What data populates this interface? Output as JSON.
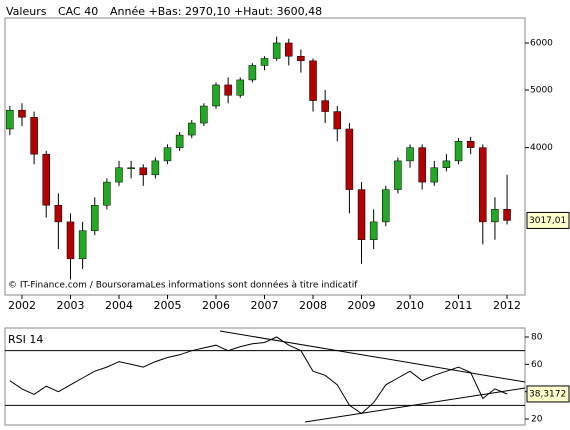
{
  "chart_data": [
    {
      "type": "candlestick",
      "header_labels": [
        "Valeurs",
        "CAC 40",
        "Année +Bas: 2970,10 +Haut: 3600,48"
      ],
      "footnote": "© IT-Finance.com / BoursoramaLes informations sont données à titre indicatif",
      "x": [
        2001.75,
        2002,
        2002.25,
        2002.5,
        2002.75,
        2003,
        2003.25,
        2003.5,
        2003.75,
        2004,
        2004.25,
        2004.5,
        2004.75,
        2005,
        2005.25,
        2005.5,
        2005.75,
        2006,
        2006.25,
        2006.5,
        2006.75,
        2007,
        2007.25,
        2007.5,
        2007.75,
        2008,
        2008.25,
        2008.5,
        2008.75,
        2009,
        2009.25,
        2009.5,
        2009.75,
        2010,
        2010.25,
        2010.5,
        2010.75,
        2011,
        2011.25,
        2011.5,
        2011.75,
        2012
      ],
      "open": [
        4300,
        4625,
        4500,
        3900,
        3200,
        3000,
        2600,
        2900,
        3200,
        3500,
        3700,
        3700,
        3600,
        3800,
        4000,
        4200,
        4400,
        4700,
        5100,
        4900,
        5200,
        5500,
        5650,
        6000,
        5700,
        5600,
        4800,
        4600,
        4300,
        3400,
        2800,
        3000,
        3400,
        3800,
        4000,
        3500,
        3700,
        3800,
        4100,
        4000,
        3000,
        3150
      ],
      "high": [
        4700,
        4750,
        4600,
        3950,
        3350,
        3100,
        3000,
        3300,
        3550,
        3800,
        3800,
        3750,
        3850,
        4050,
        4250,
        4450,
        4750,
        5150,
        5250,
        5250,
        5550,
        5700,
        6150,
        6100,
        5850,
        5650,
        5000,
        4700,
        4400,
        3500,
        3150,
        3450,
        3850,
        4050,
        4050,
        3800,
        3900,
        4150,
        4170,
        4050,
        3300,
        3600
      ],
      "low": [
        4200,
        4350,
        3750,
        3050,
        2700,
        2400,
        2500,
        2850,
        3150,
        3450,
        3550,
        3450,
        3550,
        3750,
        3950,
        4150,
        4350,
        4650,
        4750,
        4850,
        5150,
        5400,
        5600,
        5500,
        5350,
        4600,
        4400,
        4100,
        3100,
        2550,
        2700,
        2950,
        3350,
        3700,
        3400,
        3450,
        3650,
        3750,
        3900,
        2750,
        2800,
        2970
      ],
      "close": [
        4625,
        4500,
        3900,
        3200,
        3000,
        2600,
        2900,
        3200,
        3500,
        3700,
        3700,
        3600,
        3800,
        4000,
        4200,
        4400,
        4700,
        5100,
        4900,
        5200,
        5500,
        5650,
        6000,
        5700,
        5600,
        4800,
        4600,
        4300,
        3400,
        2800,
        3000,
        3400,
        3800,
        4000,
        3500,
        3700,
        3800,
        4100,
        4000,
        3000,
        3150,
        3017.01
      ],
      "up_color": "#22a822",
      "down_color": "#b30000",
      "last_value": {
        "value": 3017.01,
        "label": "3017,01"
      },
      "log_scale": true,
      "xlim": [
        2001.65,
        2012.37
      ],
      "xticks": [
        2002,
        2003,
        2004,
        2005,
        2006,
        2007,
        2008,
        2009,
        2010,
        2011,
        2012
      ],
      "ylim": [
        2260,
        6610
      ],
      "yticks": [
        4000,
        5000,
        6000
      ]
    },
    {
      "type": "line",
      "title": "RSI 14",
      "x": [
        2001.75,
        2002,
        2002.25,
        2002.5,
        2002.75,
        2003,
        2003.25,
        2003.5,
        2003.75,
        2004,
        2004.25,
        2004.5,
        2004.75,
        2005,
        2005.25,
        2005.5,
        2005.75,
        2006,
        2006.25,
        2006.5,
        2006.75,
        2007,
        2007.25,
        2007.5,
        2007.75,
        2008,
        2008.25,
        2008.5,
        2008.75,
        2009,
        2009.25,
        2009.5,
        2009.75,
        2010,
        2010.25,
        2010.5,
        2010.75,
        2011,
        2011.25,
        2011.5,
        2011.75,
        2012
      ],
      "values": [
        48,
        42,
        38,
        44,
        40,
        45,
        50,
        55,
        58,
        62,
        60,
        58,
        62,
        65,
        67,
        70,
        72,
        74,
        70,
        73,
        75,
        76,
        80,
        74,
        70,
        55,
        52,
        45,
        30,
        24,
        32,
        45,
        50,
        55,
        48,
        52,
        55,
        58,
        54,
        35,
        42,
        38.3172
      ],
      "color": "#000000",
      "last_value": {
        "value": 38.3172,
        "label": "38,3172"
      },
      "reference_lines": [
        70,
        30
      ],
      "xlim": [
        2001.65,
        2012.37
      ],
      "ylim": [
        15.6,
        86.6
      ],
      "yticks": [
        20,
        40,
        60,
        80
      ]
    }
  ]
}
